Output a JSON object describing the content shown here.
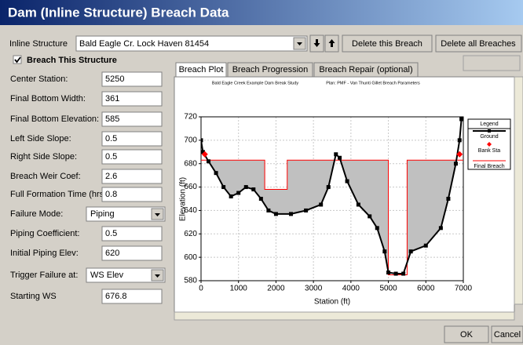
{
  "window": {
    "title": "Dam (Inline Structure) Breach Data"
  },
  "toolbar": {
    "label": "Inline Structure",
    "selection": "Bald Eagle Cr. Lock Haven    81454",
    "buttons": [
      "Delete this Breach",
      "Delete all Breaches"
    ]
  },
  "checkbox": {
    "label": "Breach This Structure",
    "checked": true
  },
  "fields": [
    {
      "label": "Center Station:",
      "value": "5250"
    },
    {
      "label": "Final Bottom Width:",
      "value": "361"
    },
    {
      "label": "Final Bottom Elevation:",
      "value": "585"
    },
    {
      "label": "Left Side Slope:",
      "value": "0.5"
    },
    {
      "label": "Right Side Slope:",
      "value": "0.5"
    },
    {
      "label": "Breach Weir Coef:",
      "value": "2.6"
    },
    {
      "label": "Full Formation Time (hrs):",
      "value": "0.8"
    },
    {
      "label": "Failure Mode:",
      "value": "Piping",
      "dropdown": true
    },
    {
      "label": "Piping Coefficient:",
      "value": "0.5"
    },
    {
      "label": "Initial Piping Elev:",
      "value": "620"
    },
    {
      "label": "Trigger Failure at:",
      "value": "WS Elev",
      "dropdown": true
    },
    {
      "label": "Starting WS",
      "value": "676.8"
    }
  ],
  "tabs": [
    "Breach Plot",
    "Breach Progression",
    "Breach Repair (optional)"
  ],
  "chart_data": {
    "type": "line",
    "title": "Bald Eagle Creek Example Dam Break Study",
    "subtitle": "Plan: PMF - Van Thunti Gillet Breach Parameters",
    "xlabel": "Station (ft)",
    "ylabel": "Elevation (ft)",
    "xlim": [
      0,
      7000
    ],
    "ylim": [
      580,
      720
    ],
    "xticks": [
      0,
      1000,
      2000,
      3000,
      4000,
      5000,
      6000,
      7000
    ],
    "yticks": [
      580,
      600,
      620,
      640,
      660,
      680,
      700,
      720
    ],
    "grid": true,
    "legend_title": "Legend",
    "series": [
      {
        "name": "Ground",
        "color": "#000000",
        "x": [
          0,
          50,
          200,
          400,
          600,
          800,
          1000,
          1200,
          1400,
          1600,
          1800,
          2000,
          2400,
          2800,
          3200,
          3400,
          3600,
          3700,
          3900,
          4200,
          4500,
          4700,
          4900,
          5000,
          5200,
          5400,
          5600,
          6000,
          6400,
          6600,
          6800,
          6900,
          6950
        ],
        "values": [
          700,
          690,
          682,
          672,
          660,
          652,
          655,
          660,
          658,
          650,
          640,
          637,
          637,
          640,
          645,
          660,
          688,
          685,
          665,
          645,
          635,
          625,
          605,
          587,
          586,
          586,
          605,
          610,
          625,
          650,
          680,
          700,
          718
        ]
      },
      {
        "name": "Bank Sta",
        "color": "#ff0000",
        "x": [
          100,
          6900
        ],
        "values": [
          688,
          688
        ]
      },
      {
        "name": "Final Breach",
        "color": "#ff0000",
        "x": [
          0,
          1700,
          1700,
          2300,
          2300,
          5000,
          5000,
          5500,
          5500,
          7000
        ],
        "values": [
          683,
          683,
          658,
          658,
          683,
          683,
          585,
          585,
          683,
          683
        ]
      }
    ]
  },
  "footer": {
    "buttons": [
      "OK",
      "Cancel"
    ]
  }
}
